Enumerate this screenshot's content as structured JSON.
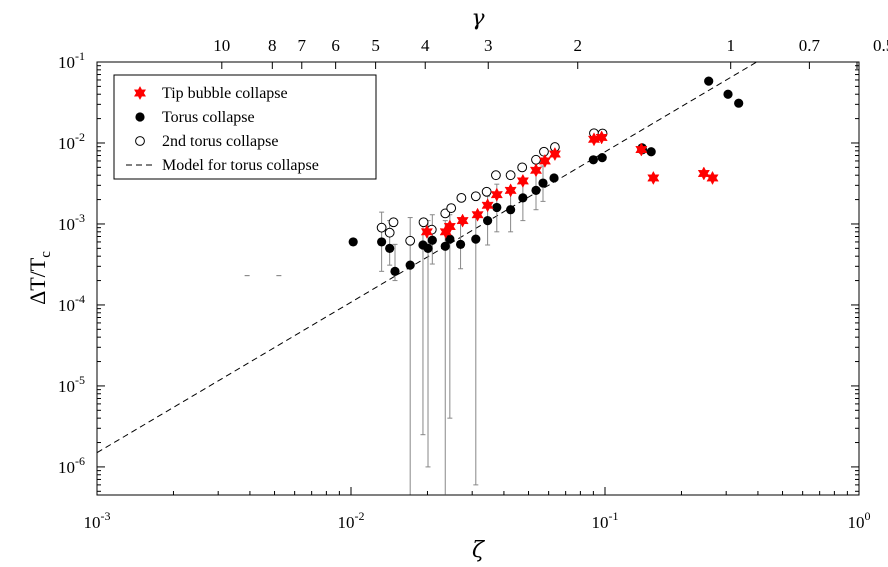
{
  "chart_data": {
    "type": "scatter",
    "xlabel": "ζ",
    "ylabel": "ΔT/T",
    "ylabel_sub": "c",
    "top_xlabel": "γ",
    "x_scale": "log",
    "y_scale": "log",
    "xlim": [
      0.001,
      1
    ],
    "ylim": [
      4.5e-07,
      0.1
    ],
    "grid": false,
    "legend_position": "top-left",
    "x_ticks": [
      {
        "value": 0.001,
        "base": "10",
        "exp": "-3"
      },
      {
        "value": 0.01,
        "base": "10",
        "exp": "-2"
      },
      {
        "value": 0.1,
        "base": "10",
        "exp": "-1"
      },
      {
        "value": 1,
        "base": "10",
        "exp": "0"
      }
    ],
    "y_ticks": [
      {
        "value": 1e-06,
        "base": "10",
        "exp": "-6"
      },
      {
        "value": 1e-05,
        "base": "10",
        "exp": "-5"
      },
      {
        "value": 0.0001,
        "base": "10",
        "exp": "-4"
      },
      {
        "value": 0.001,
        "base": "10",
        "exp": "-3"
      },
      {
        "value": 0.01,
        "base": "10",
        "exp": "-2"
      },
      {
        "value": 0.1,
        "base": "10",
        "exp": "-1"
      }
    ],
    "top_ticks": [
      {
        "label": "10",
        "zeta": 0.0031
      },
      {
        "label": "8",
        "zeta": 0.0049
      },
      {
        "label": "7",
        "zeta": 0.0064
      },
      {
        "label": "6",
        "zeta": 0.0087
      },
      {
        "label": "5",
        "zeta": 0.0125
      },
      {
        "label": "4",
        "zeta": 0.0196
      },
      {
        "label": "3",
        "zeta": 0.0347
      },
      {
        "label": "2",
        "zeta": 0.0781
      },
      {
        "label": "1",
        "zeta": 0.3125
      },
      {
        "label": "0.7",
        "zeta": 0.6378
      },
      {
        "label": "0.5",
        "zeta": 1.25
      }
    ],
    "series": [
      {
        "name": "Tip bubble collapse",
        "marker": "hexagram",
        "color": "#ff0000",
        "points": [
          [
            0.0199,
            0.0008
          ],
          [
            0.0236,
            0.0008
          ],
          [
            0.0245,
            0.00093
          ],
          [
            0.0275,
            0.0011
          ],
          [
            0.0315,
            0.0013
          ],
          [
            0.0345,
            0.0017
          ],
          [
            0.0375,
            0.0023
          ],
          [
            0.0425,
            0.0026
          ],
          [
            0.0475,
            0.0034
          ],
          [
            0.0535,
            0.0046
          ],
          [
            0.058,
            0.006
          ],
          [
            0.0635,
            0.0073
          ],
          [
            0.0905,
            0.0111
          ],
          [
            0.097,
            0.0117
          ],
          [
            0.139,
            0.0083
          ],
          [
            0.155,
            0.0037
          ],
          [
            0.245,
            0.0042
          ],
          [
            0.265,
            0.0037
          ]
        ]
      },
      {
        "name": "Torus collapse",
        "marker": "filled-circle",
        "color": "#000000",
        "points": [
          [
            0.0102,
            0.0006
          ],
          [
            0.0132,
            0.0006
          ],
          [
            0.0142,
            0.0005
          ],
          [
            0.0149,
            0.00026
          ],
          [
            0.0171,
            0.00031
          ],
          [
            0.0192,
            0.00055
          ],
          [
            0.0201,
            0.0005
          ],
          [
            0.0209,
            0.00063
          ],
          [
            0.0235,
            0.00053
          ],
          [
            0.0245,
            0.00065
          ],
          [
            0.027,
            0.00056
          ],
          [
            0.031,
            0.00065
          ],
          [
            0.0345,
            0.0011
          ],
          [
            0.0375,
            0.0016
          ],
          [
            0.0425,
            0.0015
          ],
          [
            0.0475,
            0.0021
          ],
          [
            0.0535,
            0.0026
          ],
          [
            0.057,
            0.0032
          ],
          [
            0.063,
            0.0037
          ],
          [
            0.09,
            0.0062
          ],
          [
            0.0975,
            0.0066
          ],
          [
            0.14,
            0.0087
          ],
          [
            0.152,
            0.0078
          ],
          [
            0.256,
            0.058
          ],
          [
            0.305,
            0.04
          ],
          [
            0.336,
            0.031
          ]
        ]
      },
      {
        "name": "2nd torus collapse",
        "marker": "open-circle",
        "color": "#000000",
        "points": [
          [
            0.0132,
            0.0009
          ],
          [
            0.0142,
            0.00078
          ],
          [
            0.0147,
            0.00105
          ],
          [
            0.0171,
            0.00062
          ],
          [
            0.0193,
            0.00105
          ],
          [
            0.0208,
            0.00085
          ],
          [
            0.0235,
            0.00135
          ],
          [
            0.0248,
            0.00157
          ],
          [
            0.0272,
            0.0021
          ],
          [
            0.031,
            0.0022
          ],
          [
            0.0342,
            0.0025
          ],
          [
            0.0372,
            0.004
          ],
          [
            0.0425,
            0.004
          ],
          [
            0.0472,
            0.005
          ],
          [
            0.0535,
            0.0062
          ],
          [
            0.0575,
            0.0078
          ],
          [
            0.0635,
            0.0089
          ],
          [
            0.0905,
            0.0132
          ],
          [
            0.0978,
            0.0131
          ],
          [
            0.14,
            0.0083
          ]
        ]
      },
      {
        "name": "Model for torus collapse",
        "marker": "dashed-line",
        "color": "#000000",
        "line": [
          [
            0.001,
            1.5e-06
          ],
          [
            0.3955,
            0.1
          ]
        ]
      }
    ],
    "error_bars": [
      [
        0.0132,
        0.0006,
        0.00026,
        0.0014
      ],
      [
        0.0142,
        0.0005,
        0.00031,
        0.0011
      ],
      [
        0.0149,
        0.00026,
        0.0002,
        0.00056
      ],
      [
        0.0171,
        0.00031,
        4.5e-07,
        0.0012
      ],
      [
        0.0192,
        0.00055,
        2.5e-06,
        0.0011
      ],
      [
        0.0201,
        0.0005,
        1e-06,
        0.0011
      ],
      [
        0.0209,
        0.00063,
        0.00032,
        0.0013
      ],
      [
        0.0235,
        0.00053,
        4.6e-07,
        0.0011
      ],
      [
        0.0245,
        0.00065,
        4e-06,
        0.0013
      ],
      [
        0.027,
        0.00056,
        0.00028,
        0.0012
      ],
      [
        0.031,
        0.00065,
        6e-07,
        0.0014
      ],
      [
        0.0345,
        0.0011,
        0.00055,
        0.0022
      ],
      [
        0.0375,
        0.0016,
        0.0008,
        0.0031
      ],
      [
        0.0425,
        0.0015,
        0.0008,
        0.0027
      ],
      [
        0.0475,
        0.0021,
        0.0011,
        0.0036
      ],
      [
        0.0535,
        0.0026,
        0.0015,
        0.0045
      ],
      [
        0.057,
        0.0032,
        0.0019,
        0.0052
      ]
    ],
    "stray_marks": [
      [
        0.0039,
        0.00023
      ],
      [
        0.0052,
        0.00023
      ]
    ]
  }
}
